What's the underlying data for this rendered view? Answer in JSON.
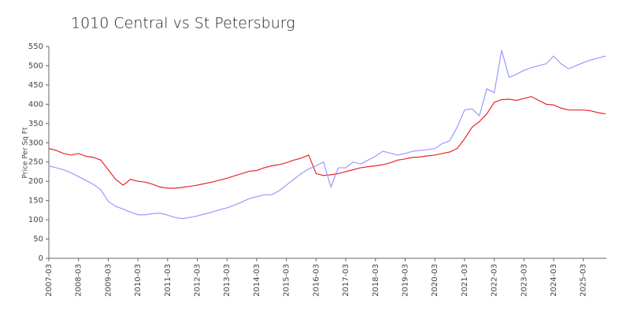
{
  "chart_data": {
    "type": "line",
    "title": "1010 Central vs St Petersburg",
    "y_label": "Price Per Sq Ft",
    "categories": [
      "2007-03",
      null,
      null,
      null,
      "2008-03",
      null,
      null,
      null,
      "2009-03",
      null,
      null,
      null,
      "2010-03",
      null,
      null,
      null,
      "2011-03",
      null,
      null,
      null,
      "2012-03",
      null,
      null,
      null,
      "2013-03",
      null,
      null,
      null,
      "2014-03",
      null,
      null,
      null,
      "2015-03",
      null,
      null,
      null,
      "2016-03",
      null,
      null,
      null,
      "2017-03",
      null,
      null,
      null,
      "2018-03",
      null,
      null,
      null,
      "2019-03",
      null,
      null,
      null,
      "2020-03",
      null,
      null,
      null,
      "2021-03",
      null,
      null,
      null,
      "2022-03",
      null,
      null,
      null,
      "2023-03",
      null,
      null,
      null,
      "2024-03",
      null,
      null,
      null,
      "2025-03",
      null,
      null,
      null
    ],
    "series": [
      {
        "color": "#e8262a",
        "values": [
          285,
          280,
          272,
          268,
          272,
          265,
          262,
          255,
          230,
          205,
          190,
          205,
          200,
          198,
          192,
          185,
          182,
          182,
          184,
          187,
          190,
          194,
          198,
          203,
          208,
          214,
          220,
          226,
          228,
          235,
          240,
          243,
          248,
          255,
          260,
          268,
          220,
          215,
          217,
          220,
          225,
          230,
          235,
          238,
          240,
          243,
          248,
          255,
          258,
          262,
          263,
          266,
          268,
          272,
          276,
          285,
          310,
          340,
          355,
          375,
          405,
          412,
          413,
          410,
          415,
          420,
          410,
          400,
          398,
          390,
          385,
          385,
          385,
          383,
          378,
          375
        ]
      },
      {
        "color": "#9999ff",
        "values": [
          240,
          235,
          230,
          222,
          212,
          202,
          192,
          178,
          148,
          135,
          128,
          120,
          113,
          113,
          116,
          117,
          112,
          106,
          103,
          106,
          110,
          115,
          120,
          126,
          131,
          138,
          146,
          155,
          160,
          165,
          165,
          175,
          190,
          205,
          220,
          232,
          240,
          250,
          185,
          235,
          235,
          250,
          245,
          255,
          265,
          278,
          273,
          268,
          272,
          278,
          280,
          282,
          285,
          298,
          305,
          340,
          385,
          388,
          370,
          440,
          430,
          540,
          470,
          478,
          488,
          495,
          500,
          505,
          525,
          505,
          492,
          500,
          508,
          515,
          520,
          525
        ]
      }
    ],
    "ylim": [
      0,
      550
    ],
    "yticks": [
      0,
      50,
      100,
      150,
      200,
      250,
      300,
      350,
      400,
      450,
      500,
      550
    ]
  }
}
